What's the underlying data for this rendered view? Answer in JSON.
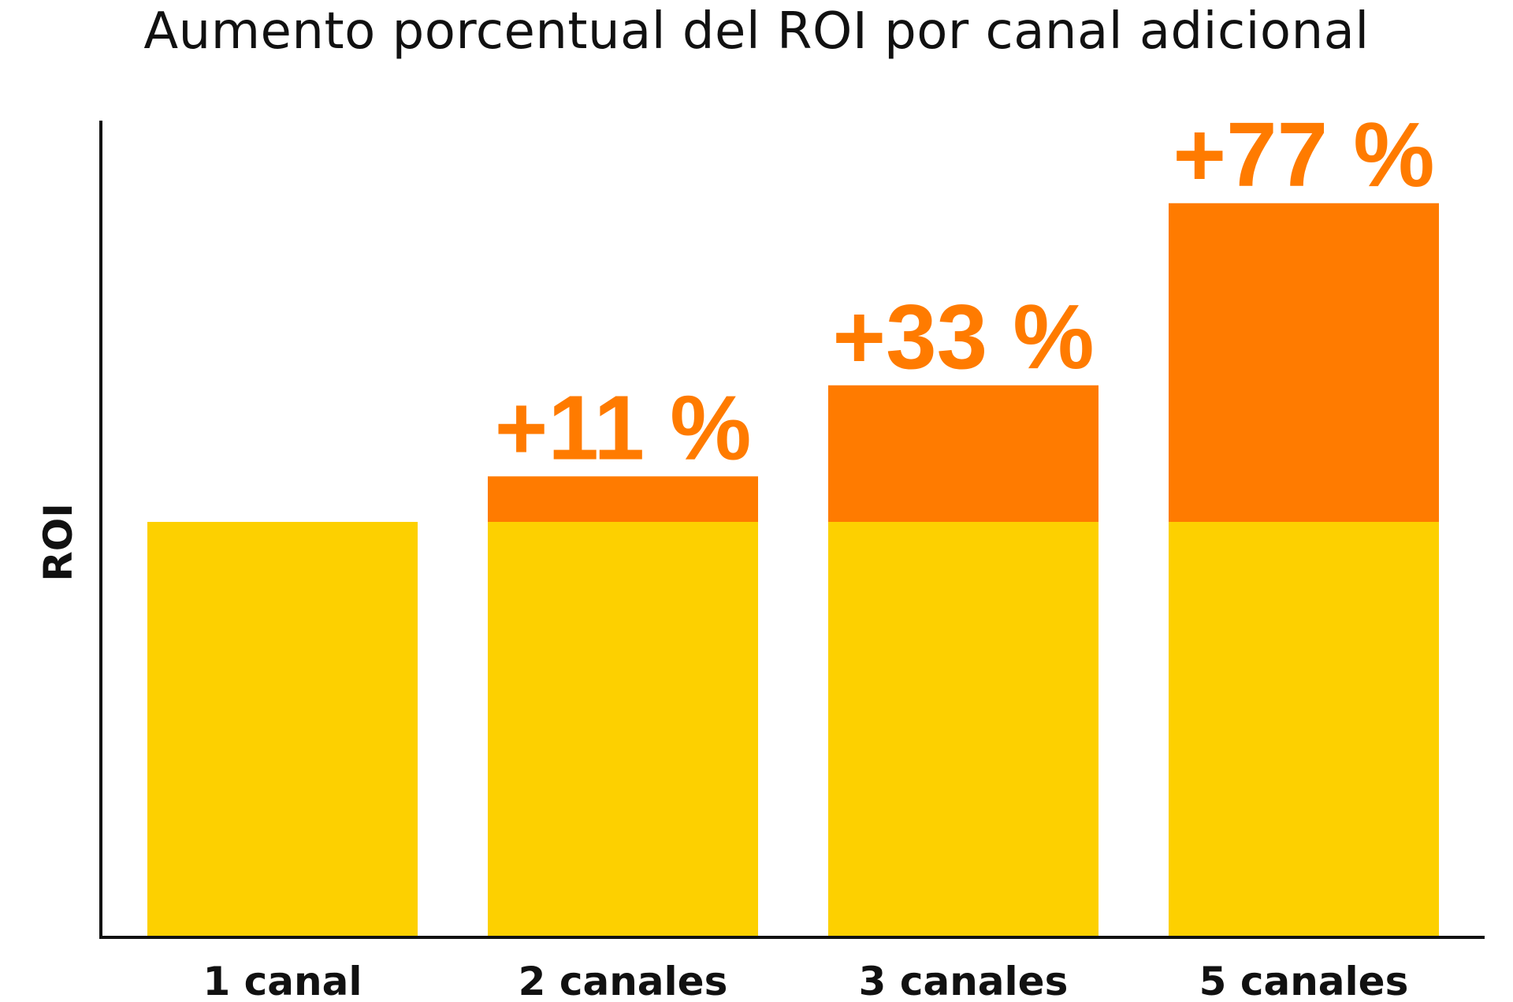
{
  "chart_data": {
    "type": "bar",
    "title": "Aumento porcentual del ROI por canal adicional",
    "xlabel": "",
    "ylabel": "ROI",
    "categories": [
      "1 canal",
      "2 canales",
      "3 canales",
      "5 canales"
    ],
    "series": [
      {
        "values": [
          100,
          100,
          100,
          100
        ]
      },
      {
        "values": [
          0,
          11,
          33,
          77
        ]
      }
    ],
    "data_labels": [
      "",
      "+11 %",
      "+33 %",
      "+77 %"
    ],
    "ylim": [
      0,
      200
    ],
    "grid": false,
    "legend": "none",
    "colors": {
      "base": "#FDD000",
      "increase": "#FF7B00",
      "axis": "#111111",
      "label": "#FF7B00"
    }
  }
}
